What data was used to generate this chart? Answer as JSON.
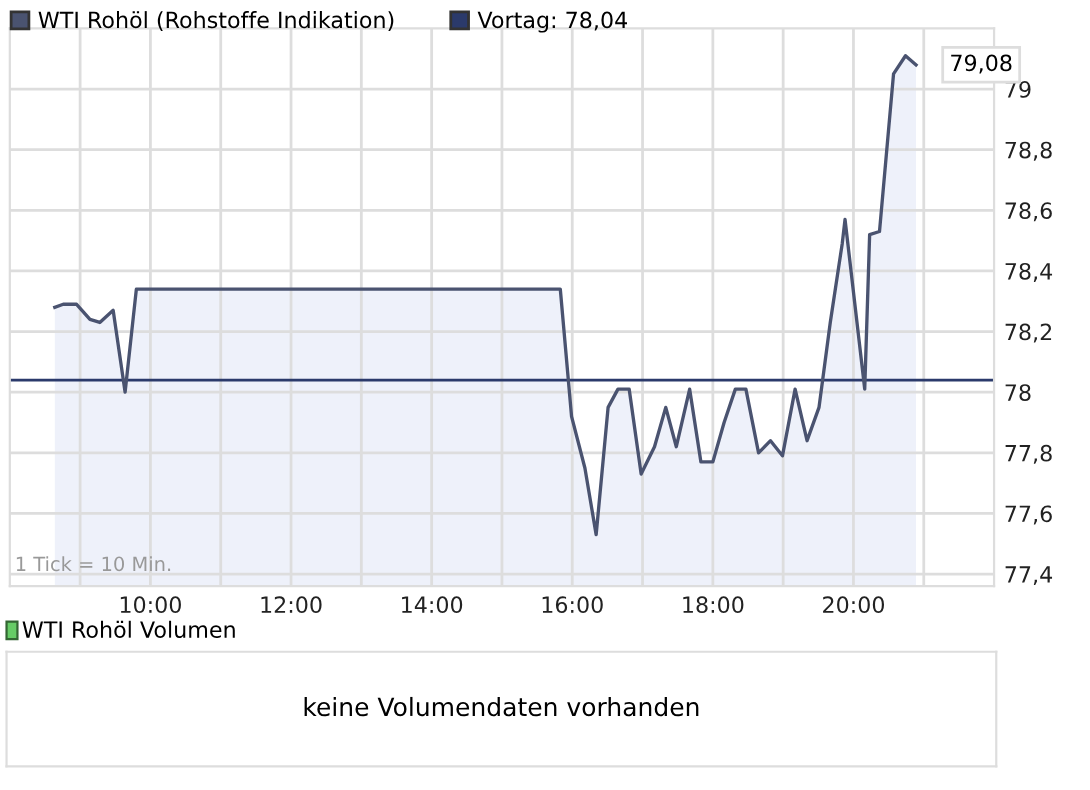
{
  "chart_data": [
    {
      "type": "area",
      "legend": "top left",
      "grid": true,
      "x": [
        8.64,
        8.76,
        8.95,
        9.14,
        9.28,
        9.47,
        9.64,
        9.8,
        15.83,
        15.99,
        16.18,
        16.34,
        16.51,
        16.65,
        16.81,
        16.98,
        17.17,
        17.33,
        17.48,
        17.67,
        17.83,
        18.0,
        18.16,
        18.32,
        18.47,
        18.65,
        18.82,
        18.99,
        19.17,
        19.34,
        19.51,
        19.67,
        19.84,
        19.88,
        20.16,
        20.23,
        20.37,
        20.57,
        20.74,
        20.89
      ],
      "series": [
        {
          "name": "WTI Rohöl (Rohstoffe Indikation)",
          "color": "#4a5370",
          "values": [
            78.28,
            78.29,
            78.29,
            78.24,
            78.23,
            78.27,
            78.0,
            78.34,
            78.34,
            77.92,
            77.75,
            77.53,
            77.95,
            78.01,
            78.01,
            77.73,
            77.82,
            77.95,
            77.82,
            78.01,
            77.77,
            77.77,
            77.9,
            78.01,
            78.01,
            77.8,
            77.84,
            77.79,
            78.01,
            77.84,
            77.95,
            78.23,
            78.49,
            78.57,
            78.01,
            78.52,
            78.53,
            79.05,
            79.11,
            79.08
          ]
        }
      ],
      "ref_lines": [
        {
          "axis": "y",
          "value": 78.04,
          "label": "Vortag: 78,04",
          "color": "#2b3a6b"
        }
      ],
      "xlim": [
        8.0,
        22.0
      ],
      "xticks": [
        {
          "value": 9,
          "label": null
        },
        {
          "value": 10,
          "label": "10:00"
        },
        {
          "value": 11,
          "label": null
        },
        {
          "value": 12,
          "label": "12:00"
        },
        {
          "value": 13,
          "label": null
        },
        {
          "value": 14,
          "label": "14:00"
        },
        {
          "value": 15,
          "label": null
        },
        {
          "value": 16,
          "label": "16:00"
        },
        {
          "value": 17,
          "label": null
        },
        {
          "value": 18,
          "label": "18:00"
        },
        {
          "value": 19,
          "label": null
        },
        {
          "value": 20,
          "label": "20:00"
        },
        {
          "value": 21,
          "label": null
        }
      ],
      "ylim": [
        77.36,
        79.2
      ],
      "yticks": [
        {
          "value": 77.4,
          "label": "77,4"
        },
        {
          "value": 77.6,
          "label": "77,6"
        },
        {
          "value": 77.8,
          "label": "77,8"
        },
        78,
        {
          "value": 78.2,
          "label": "78,2"
        },
        {
          "value": 78.4,
          "label": "78,4"
        },
        {
          "value": 78.6,
          "label": "78,6"
        },
        {
          "value": 78.8,
          "label": "78,8"
        },
        79
      ],
      "annotations": [
        "1 Tick = 10 Min.",
        {
          "text": "79,08",
          "x": 20.89,
          "y": 79.08
        }
      ]
    },
    {
      "type": "other",
      "title": "WTI Rohöl Volumen",
      "annotations": [
        "keine Volumendaten vorhanden"
      ]
    }
  ]
}
